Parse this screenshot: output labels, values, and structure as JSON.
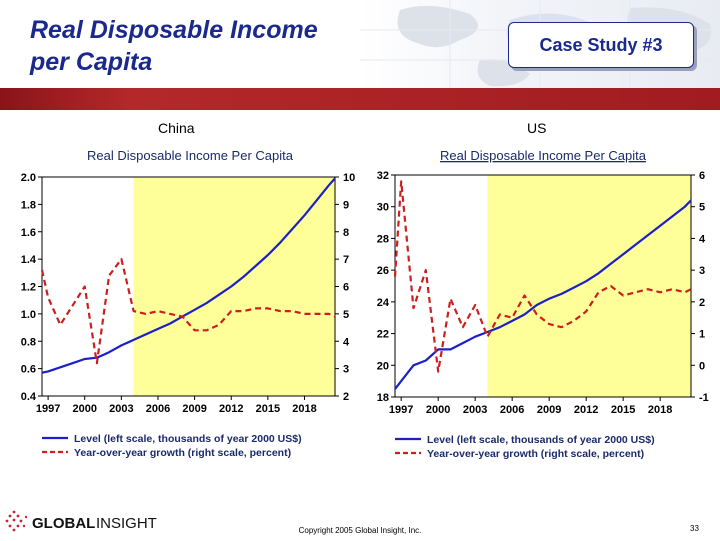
{
  "slide": {
    "title_line1": "Real Disposable Income",
    "title_line2": "per Capita",
    "case_study": "Case Study #3",
    "copyright": "Copyright 2005 Global Insight, Inc.",
    "page_number": "33",
    "logo_text_bold": "GLOBAL",
    "logo_text_light": "INSIGHT"
  },
  "colors": {
    "title": "#1a2a8c",
    "band": "#a01c20",
    "level_line": "#1c20c8",
    "growth_line": "#cc1f1f",
    "forecast_shade": "#ffff99"
  },
  "chart_data": [
    {
      "id": "china",
      "type": "line",
      "panel_label": "China",
      "title": "Real Disposable Income Per Capita",
      "x_ticks": [
        "1997",
        "2000",
        "2003",
        "2006",
        "2009",
        "2012",
        "2015",
        "2018"
      ],
      "xlim": [
        1996.5,
        2020.5
      ],
      "left_ylim": [
        0.4,
        2.0
      ],
      "left_ticks": [
        "0.4",
        "0.6",
        "0.8",
        "1.0",
        "1.2",
        "1.4",
        "1.6",
        "1.8",
        "2.0"
      ],
      "right_ylim": [
        2,
        10
      ],
      "right_ticks": [
        "2",
        "3",
        "4",
        "5",
        "6",
        "7",
        "8",
        "9",
        "10"
      ],
      "shade_range": [
        2004,
        2020.5
      ],
      "series": [
        {
          "name": "Level (left scale, thousands of year 2000 US$)",
          "axis": "left",
          "color": "#1c20c8",
          "style": "solid",
          "x": [
            1996.5,
            1997,
            1998,
            1999,
            2000,
            2001,
            2002,
            2003,
            2004,
            2005,
            2006,
            2007,
            2008,
            2009,
            2010,
            2011,
            2012,
            2013,
            2014,
            2015,
            2016,
            2017,
            2018,
            2019,
            2020,
            2020.5
          ],
          "values": [
            0.57,
            0.58,
            0.61,
            0.64,
            0.67,
            0.68,
            0.72,
            0.77,
            0.81,
            0.85,
            0.89,
            0.93,
            0.98,
            1.03,
            1.08,
            1.14,
            1.2,
            1.27,
            1.35,
            1.43,
            1.52,
            1.62,
            1.72,
            1.83,
            1.94,
            1.99
          ]
        },
        {
          "name": "Year-over-year growth (right scale, percent)",
          "axis": "right",
          "color": "#cc1f1f",
          "style": "dashed",
          "x": [
            1996.5,
            1997,
            1998,
            1999,
            2000,
            2001,
            2002,
            2003,
            2004,
            2005,
            2006,
            2007,
            2008,
            2009,
            2010,
            2011,
            2012,
            2013,
            2014,
            2015,
            2016,
            2017,
            2018,
            2019,
            2020,
            2020.5
          ],
          "values": [
            6.6,
            5.6,
            4.6,
            5.3,
            6.0,
            3.2,
            6.4,
            7.0,
            5.1,
            5.0,
            5.1,
            5.0,
            4.9,
            4.4,
            4.4,
            4.6,
            5.1,
            5.1,
            5.2,
            5.2,
            5.1,
            5.1,
            5.0,
            5.0,
            5.0,
            4.9
          ]
        }
      ]
    },
    {
      "id": "us",
      "type": "line",
      "panel_label": "US",
      "title": "Real Disposable Income Per Capita",
      "x_ticks": [
        "1997",
        "2000",
        "2003",
        "2006",
        "2009",
        "2012",
        "2015",
        "2018"
      ],
      "xlim": [
        1996.5,
        2020.5
      ],
      "left_ylim": [
        18,
        32
      ],
      "left_ticks": [
        "18",
        "20",
        "22",
        "24",
        "26",
        "28",
        "30",
        "32"
      ],
      "right_ylim": [
        -1,
        6
      ],
      "right_ticks": [
        "-1",
        "0",
        "1",
        "2",
        "3",
        "4",
        "5",
        "6"
      ],
      "shade_range": [
        2004,
        2020.5
      ],
      "series": [
        {
          "name": "Level (left scale, thousands of year 2000 US$)",
          "axis": "left",
          "color": "#1c20c8",
          "style": "solid",
          "x": [
            1996.5,
            1997,
            1998,
            1999,
            2000,
            2001,
            2002,
            2003,
            2004,
            2005,
            2006,
            2007,
            2008,
            2009,
            2010,
            2011,
            2012,
            2013,
            2014,
            2015,
            2016,
            2017,
            2018,
            2019,
            2020,
            2020.5
          ],
          "values": [
            18.5,
            19.0,
            20.0,
            20.3,
            21.0,
            21.0,
            21.4,
            21.8,
            22.1,
            22.4,
            22.8,
            23.2,
            23.8,
            24.2,
            24.5,
            24.9,
            25.3,
            25.8,
            26.4,
            27.0,
            27.6,
            28.2,
            28.8,
            29.4,
            30.0,
            30.4
          ]
        },
        {
          "name": "Year-over-year growth (right scale, percent)",
          "axis": "right",
          "color": "#cc1f1f",
          "style": "dashed",
          "x": [
            1996.5,
            1997,
            1998,
            1999,
            2000,
            2001,
            2002,
            2003,
            2004,
            2005,
            2006,
            2007,
            2008,
            2009,
            2010,
            2011,
            2012,
            2013,
            2014,
            2015,
            2016,
            2017,
            2018,
            2019,
            2020,
            2020.5
          ],
          "values": [
            2.8,
            5.8,
            1.8,
            3.0,
            -0.2,
            2.1,
            1.2,
            1.9,
            0.9,
            1.6,
            1.5,
            2.2,
            1.6,
            1.3,
            1.2,
            1.4,
            1.7,
            2.3,
            2.5,
            2.2,
            2.3,
            2.4,
            2.3,
            2.4,
            2.3,
            2.4
          ]
        }
      ]
    }
  ]
}
